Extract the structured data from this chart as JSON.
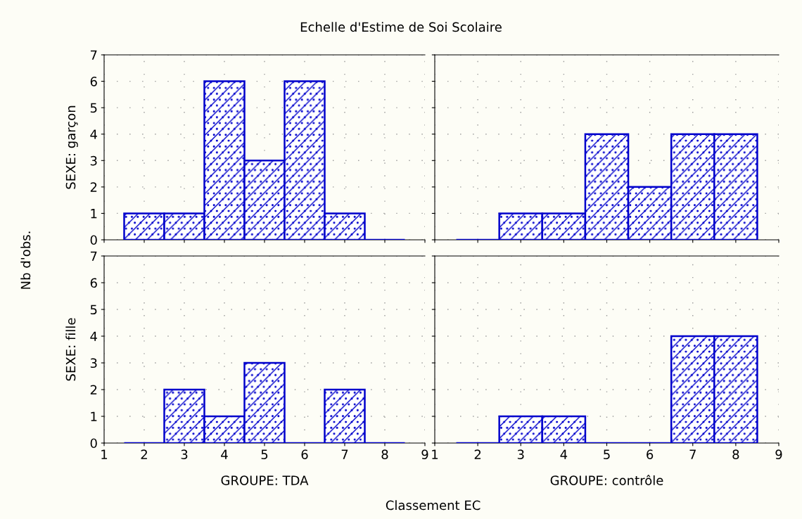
{
  "chart_data": [
    {
      "type": "histogram",
      "title": "Echelle d'Estime de Soi Scolaire",
      "ylabel": "SEXE: garçon",
      "annotations": [
        "Nb d'obs.",
        "Classement EC"
      ],
      "bins": [
        1.5,
        2.5,
        3.5,
        4.5,
        5.5,
        6.5,
        7.5,
        8.5
      ],
      "values": [
        1,
        1,
        6,
        3,
        6,
        1,
        0
      ],
      "color": "#0000cc",
      "xlim": [
        1,
        9
      ],
      "ylim": [
        0,
        7
      ],
      "xticks": [
        1,
        2,
        3,
        4,
        5,
        6,
        7,
        8,
        9
      ],
      "yticks": [
        0,
        1,
        2,
        3,
        4,
        5,
        6,
        7
      ],
      "tick_labels": "y",
      "grid": true
    },
    {
      "type": "histogram",
      "bins": [
        1.5,
        2.5,
        3.5,
        4.5,
        5.5,
        6.5,
        7.5,
        8.5
      ],
      "values": [
        0,
        1,
        1,
        4,
        2,
        4,
        4
      ],
      "color": "#0000cc",
      "xlim": [
        1,
        9
      ],
      "ylim": [
        0,
        7
      ],
      "xticks": [
        1,
        2,
        3,
        4,
        5,
        6,
        7,
        8,
        9
      ],
      "yticks": [
        0,
        1,
        2,
        3,
        4,
        5,
        6,
        7
      ],
      "tick_labels": false,
      "grid": true
    },
    {
      "type": "histogram",
      "ylabel": "SEXE: fille",
      "xlabel": "GROUPE: TDA",
      "bins": [
        1.5,
        2.5,
        3.5,
        4.5,
        5.5,
        6.5,
        7.5,
        8.5
      ],
      "values": [
        0,
        2,
        1,
        3,
        0,
        2,
        0
      ],
      "color": "#0000cc",
      "xlim": [
        1,
        9
      ],
      "ylim": [
        0,
        7
      ],
      "xticks": [
        1,
        2,
        3,
        4,
        5,
        6,
        7,
        8,
        9
      ],
      "yticks": [
        0,
        1,
        2,
        3,
        4,
        5,
        6,
        7
      ],
      "grid": true
    },
    {
      "type": "histogram",
      "xlabel": "GROUPE: contrôle",
      "bins": [
        1.5,
        2.5,
        3.5,
        4.5,
        5.5,
        6.5,
        7.5,
        8.5
      ],
      "values": [
        0,
        1,
        1,
        0,
        0,
        4,
        4
      ],
      "color": "#0000cc",
      "xlim": [
        1,
        9
      ],
      "ylim": [
        0,
        7
      ],
      "xticks": [
        1,
        2,
        3,
        4,
        5,
        6,
        7,
        8,
        9
      ],
      "yticks": [
        0,
        1,
        2,
        3,
        4,
        5,
        6,
        7
      ],
      "tick_labels": "x",
      "grid": true
    }
  ]
}
